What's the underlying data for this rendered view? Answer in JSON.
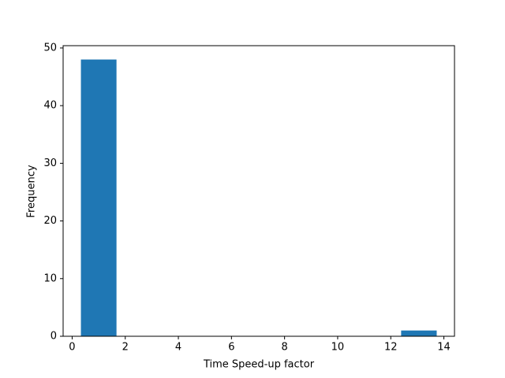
{
  "chart_data": {
    "type": "histogram",
    "x_label": "Time Speed-up factor",
    "y_label": "Frequency",
    "bins": [
      0.33,
      1.67,
      3.01,
      4.35,
      5.69,
      7.03,
      8.37,
      9.71,
      11.05,
      12.39,
      13.73
    ],
    "values": [
      48,
      0,
      0,
      0,
      0,
      0,
      0,
      0,
      0,
      1
    ],
    "color": "#1f77b4",
    "xlim": [
      -0.34,
      14.4
    ],
    "ylim": [
      0,
      50.4
    ],
    "xticks": [
      0,
      2,
      4,
      6,
      8,
      10,
      12,
      14
    ],
    "yticks": [
      0,
      10,
      20,
      30,
      40,
      50
    ],
    "grid": false
  }
}
